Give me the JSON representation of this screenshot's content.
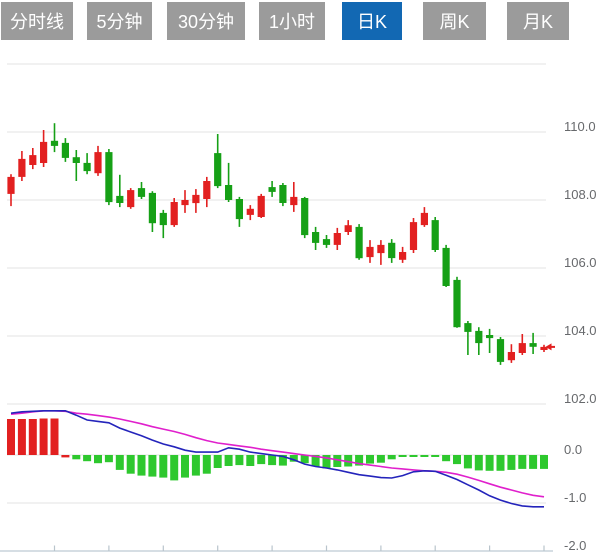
{
  "tab_bar": {
    "items": [
      {
        "label": "分时线",
        "active": false
      },
      {
        "label": "5分钟",
        "active": false
      },
      {
        "label": "30分钟",
        "active": false
      },
      {
        "label": "1小时",
        "active": false
      },
      {
        "label": "日K",
        "active": true
      },
      {
        "label": "周K",
        "active": false
      },
      {
        "label": "月K",
        "active": false
      }
    ]
  },
  "colors": {
    "tab_bg": "#9b9b9b",
    "tab_active_bg": "#1268b3",
    "tab_text": "#ffffff",
    "grid": "#e3e3e3",
    "axis_line": "#c9d4db",
    "tick": "#b9c4cc",
    "label": "#67696c",
    "up": "#e22020",
    "down": "#16a016",
    "hist_up": "#e22020",
    "hist_down": "#2ec82e",
    "dif_line": "#2424bb",
    "dea_line": "#e020cc",
    "last_price_marker": "#e22020"
  },
  "chart_data": {
    "type": "candlestick",
    "title": "",
    "xlabel": "",
    "ylabel": "",
    "legend": "none",
    "grid": "on",
    "panels": {
      "price": {
        "ylim": [
          101.9,
          112.15
        ],
        "grid_values": [
          112,
          110,
          108,
          106,
          104,
          102
        ],
        "tick_values": [
          110,
          108,
          106,
          104,
          102
        ],
        "tick_labels": [
          "110.0",
          "108.0",
          "106.0",
          "104.0",
          "102.0"
        ],
        "last_price": 103.68,
        "candles_ohlc_format": "[open, high, low, close]; close>=open drawn red (up), else green (down)",
        "candles": [
          [
            108.18,
            108.76,
            107.82,
            108.68
          ],
          [
            108.68,
            109.44,
            108.56,
            109.21
          ],
          [
            109.03,
            109.53,
            108.91,
            109.32
          ],
          [
            109.09,
            110.06,
            108.97,
            109.71
          ],
          [
            109.74,
            110.26,
            109.41,
            109.59
          ],
          [
            109.68,
            109.82,
            109.12,
            109.24
          ],
          [
            109.26,
            109.47,
            108.56,
            109.09
          ],
          [
            109.09,
            109.38,
            108.76,
            108.85
          ],
          [
            108.79,
            109.59,
            108.71,
            109.41
          ],
          [
            109.41,
            109.5,
            107.85,
            107.94
          ],
          [
            108.12,
            108.74,
            107.79,
            107.91
          ],
          [
            107.79,
            108.35,
            107.74,
            108.29
          ],
          [
            108.35,
            108.53,
            108.03,
            108.09
          ],
          [
            108.21,
            108.26,
            107.06,
            107.32
          ],
          [
            107.62,
            107.71,
            106.88,
            107.26
          ],
          [
            107.26,
            108.06,
            107.21,
            107.94
          ],
          [
            107.85,
            108.29,
            107.62,
            108.0
          ],
          [
            107.91,
            108.32,
            107.62,
            108.15
          ],
          [
            108.03,
            108.68,
            107.79,
            108.56
          ],
          [
            109.38,
            109.94,
            108.35,
            108.41
          ],
          [
            108.44,
            109.09,
            107.94,
            108.0
          ],
          [
            108.03,
            108.09,
            107.21,
            107.44
          ],
          [
            107.56,
            107.85,
            107.41,
            107.74
          ],
          [
            107.5,
            108.18,
            107.47,
            108.12
          ],
          [
            108.38,
            108.56,
            108.09,
            108.24
          ],
          [
            108.44,
            108.5,
            107.82,
            107.91
          ],
          [
            107.85,
            108.53,
            107.65,
            108.09
          ],
          [
            108.06,
            108.09,
            106.88,
            106.97
          ],
          [
            107.06,
            107.21,
            106.53,
            106.74
          ],
          [
            106.85,
            106.97,
            106.59,
            106.68
          ],
          [
            106.68,
            107.18,
            106.53,
            107.03
          ],
          [
            107.06,
            107.41,
            106.97,
            107.26
          ],
          [
            107.21,
            107.29,
            106.24,
            106.29
          ],
          [
            106.32,
            106.82,
            106.15,
            106.62
          ],
          [
            106.44,
            106.82,
            106.09,
            106.68
          ],
          [
            106.74,
            106.85,
            106.15,
            106.29
          ],
          [
            106.24,
            106.62,
            106.15,
            106.47
          ],
          [
            106.53,
            107.47,
            106.44,
            107.35
          ],
          [
            107.26,
            107.79,
            107.21,
            107.62
          ],
          [
            107.41,
            107.5,
            106.47,
            106.53
          ],
          [
            106.59,
            106.68,
            105.44,
            105.47
          ],
          [
            105.65,
            105.74,
            104.24,
            104.26
          ],
          [
            104.38,
            104.44,
            103.44,
            104.12
          ],
          [
            104.15,
            104.26,
            103.44,
            103.79
          ],
          [
            104.03,
            104.21,
            103.5,
            103.94
          ],
          [
            103.91,
            103.97,
            103.15,
            103.24
          ],
          [
            103.29,
            103.76,
            103.21,
            103.53
          ],
          [
            103.5,
            104.06,
            103.44,
            103.79
          ],
          [
            103.79,
            104.09,
            103.47,
            103.68
          ],
          [
            103.59,
            103.74,
            103.53,
            103.68
          ]
        ]
      },
      "macd": {
        "ylim": [
          -2.05,
          1.05
        ],
        "grid_values": [
          0,
          -1
        ],
        "tick_values": [
          0,
          -1,
          -2
        ],
        "tick_labels": [
          "0.0",
          "-1.0",
          "-2.0"
        ],
        "histogram": [
          0.75,
          0.75,
          0.75,
          0.76,
          0.76,
          -0.05,
          -0.09,
          -0.13,
          -0.17,
          -0.15,
          -0.31,
          -0.39,
          -0.43,
          -0.45,
          -0.47,
          -0.53,
          -0.47,
          -0.43,
          -0.39,
          -0.27,
          -0.23,
          -0.21,
          -0.23,
          -0.19,
          -0.21,
          -0.22,
          -0.14,
          -0.17,
          -0.24,
          -0.28,
          -0.25,
          -0.24,
          -0.22,
          -0.18,
          -0.16,
          -0.09,
          -0.04,
          -0.03,
          -0.02,
          -0.03,
          -0.13,
          -0.19,
          -0.28,
          -0.32,
          -0.33,
          -0.33,
          -0.31,
          -0.29,
          -0.29,
          -0.29
        ],
        "histogram_colors": "rrrrrrgggggggggggggggggggggggggggggggggggggggggggg",
        "dif": [
          0.87,
          0.9,
          0.91,
          0.92,
          0.92,
          0.92,
          0.83,
          0.73,
          0.7,
          0.67,
          0.56,
          0.48,
          0.4,
          0.31,
          0.23,
          0.17,
          0.1,
          0.06,
          0.06,
          0.06,
          0.15,
          0.12,
          0.06,
          0.03,
          0.0,
          -0.03,
          -0.1,
          -0.19,
          -0.24,
          -0.27,
          -0.31,
          -0.36,
          -0.41,
          -0.44,
          -0.47,
          -0.48,
          -0.43,
          -0.35,
          -0.33,
          -0.34,
          -0.42,
          -0.51,
          -0.62,
          -0.73,
          -0.85,
          -0.94,
          -1.01,
          -1.06,
          -1.08,
          -1.08
        ],
        "dea": [
          0.85,
          0.87,
          0.9,
          0.92,
          0.92,
          0.91,
          0.87,
          0.85,
          0.82,
          0.79,
          0.75,
          0.7,
          0.65,
          0.59,
          0.54,
          0.49,
          0.43,
          0.36,
          0.3,
          0.25,
          0.22,
          0.19,
          0.16,
          0.12,
          0.09,
          0.06,
          0.03,
          0.0,
          -0.03,
          -0.06,
          -0.1,
          -0.14,
          -0.18,
          -0.21,
          -0.24,
          -0.27,
          -0.29,
          -0.31,
          -0.33,
          -0.34,
          -0.36,
          -0.4,
          -0.46,
          -0.53,
          -0.6,
          -0.67,
          -0.73,
          -0.79,
          -0.84,
          -0.87
        ]
      }
    },
    "x_axis": {
      "tick_every_n_candles": 5,
      "labels_visible": false
    }
  }
}
